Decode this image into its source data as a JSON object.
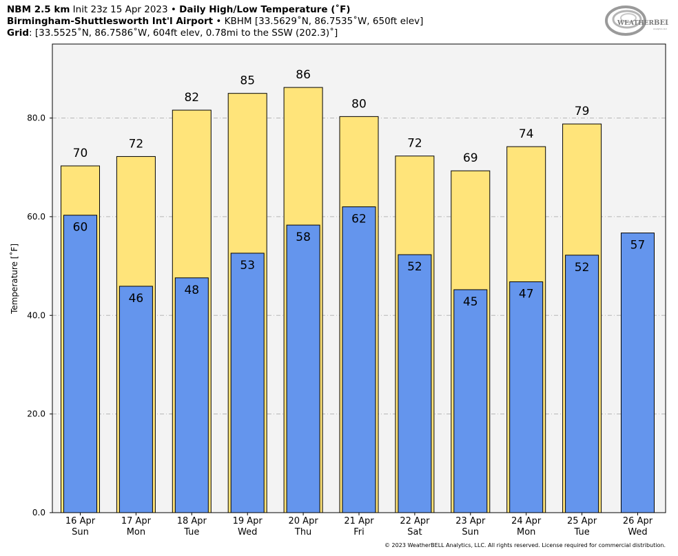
{
  "header": {
    "line1_bold": "NBM 2.5 km",
    "line1_init": " Init 23z 15 Apr 2023 • ",
    "line1_title": "Daily High/Low Temperature (˚F)",
    "line2_station": "Birmingham-Shuttlesworth Int'l Airport",
    "line2_rest": " • KBHM [33.5629˚N, 86.7535˚W, 650ft elev]",
    "line3_bold": "Grid",
    "line3_rest": ": [33.5525˚N, 86.7586˚W, 604ft elev, 0.78mi to the SSW (202.3)˚]"
  },
  "logo": {
    "text_bold": "WEATHER",
    "text_brand": "BELL",
    "subtext": "Analytics LLC"
  },
  "copyright": "© 2023 WeatherBELL Analytics, LLC. All rights reserved. License required for commercial distribution.",
  "colors": {
    "plot_bg": "#f3f3f3",
    "high_bar": "#ffe47a",
    "low_bar": "#6495ed",
    "grid": "#b5b5b5"
  },
  "chart_data": {
    "type": "bar",
    "ylabel": "Temperature [˚F]",
    "ylim": [
      0,
      95
    ],
    "yticks": [
      0,
      20,
      40,
      60,
      80
    ],
    "ytick_labels": [
      "0.0",
      "20.0",
      "40.0",
      "60.0",
      "80.0"
    ],
    "grid": "horizontal dash-dot",
    "categories": [
      [
        "16 Apr",
        "Sun"
      ],
      [
        "17 Apr",
        "Mon"
      ],
      [
        "18 Apr",
        "Tue"
      ],
      [
        "19 Apr",
        "Wed"
      ],
      [
        "20 Apr",
        "Thu"
      ],
      [
        "21 Apr",
        "Fri"
      ],
      [
        "22 Apr",
        "Sat"
      ],
      [
        "23 Apr",
        "Sun"
      ],
      [
        "24 Apr",
        "Mon"
      ],
      [
        "25 Apr",
        "Tue"
      ],
      [
        "26 Apr",
        "Wed"
      ]
    ],
    "series": [
      {
        "values": [
          70.3,
          72.2,
          81.6,
          85.0,
          86.2,
          80.3,
          72.3,
          69.3,
          74.2,
          78.8,
          null
        ],
        "labels": [
          "70",
          "72",
          "82",
          "85",
          "86",
          "80",
          "72",
          "69",
          "74",
          "79",
          null
        ]
      },
      {
        "values": [
          60.3,
          45.9,
          47.6,
          52.6,
          58.3,
          62.0,
          52.3,
          45.2,
          46.8,
          52.2,
          56.7
        ],
        "labels": [
          "60",
          "46",
          "48",
          "53",
          "58",
          "62",
          "52",
          "45",
          "47",
          "52",
          "57"
        ]
      }
    ]
  }
}
